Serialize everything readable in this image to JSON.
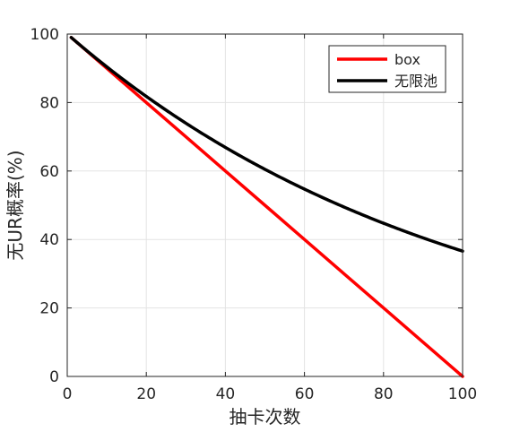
{
  "chart_data": {
    "type": "line",
    "title": "",
    "xlabel": "抽卡次数",
    "ylabel": "无UR概率(%)",
    "xlim": [
      0,
      100
    ],
    "ylim": [
      0,
      100
    ],
    "xticks": [
      0,
      20,
      40,
      60,
      80,
      100
    ],
    "yticks": [
      0,
      20,
      40,
      60,
      80,
      100
    ],
    "xtick_labels": [
      "0",
      "20",
      "40",
      "60",
      "80",
      "100"
    ],
    "ytick_labels": [
      "0",
      "20",
      "40",
      "60",
      "80",
      "100"
    ],
    "grid": true,
    "legend_position": "top-right",
    "series": [
      {
        "name": "box",
        "color": "#ff0000",
        "x": [
          1,
          10,
          20,
          30,
          40,
          50,
          60,
          70,
          80,
          90,
          100
        ],
        "y": [
          99,
          90,
          80,
          70,
          60,
          50,
          40,
          30,
          20,
          10,
          0
        ]
      },
      {
        "name": "无限池",
        "color": "#000000",
        "x": [
          1,
          10,
          20,
          30,
          40,
          50,
          60,
          70,
          80,
          90,
          100
        ],
        "y": [
          99,
          90.4,
          81.8,
          74.0,
          66.9,
          60.5,
          54.7,
          49.5,
          44.8,
          40.5,
          36.6
        ]
      }
    ]
  }
}
